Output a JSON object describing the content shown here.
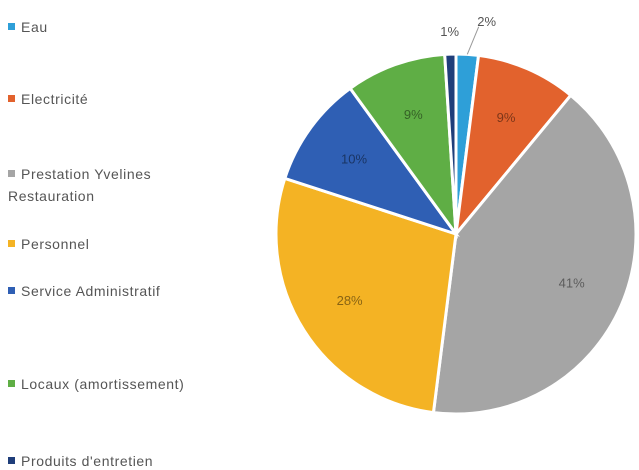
{
  "chart_data": {
    "type": "pie",
    "categories": [
      "Eau",
      "Electricité",
      "Prestation Yvelines Restauration",
      "Personnel",
      "Service Administratif",
      "Locaux (amortissement)",
      "Produits d'entretien"
    ],
    "values": [
      2,
      9,
      41,
      28,
      10,
      9,
      1
    ],
    "value_labels": [
      "2%",
      "9%",
      "41%",
      "28%",
      "10%",
      "9%",
      "1%"
    ],
    "colors": [
      "#2e9fd8",
      "#e2622d",
      "#a5a5a5",
      "#f4b324",
      "#2f5fb4",
      "#5fae45",
      "#1f3e7a"
    ],
    "legend": "left"
  }
}
